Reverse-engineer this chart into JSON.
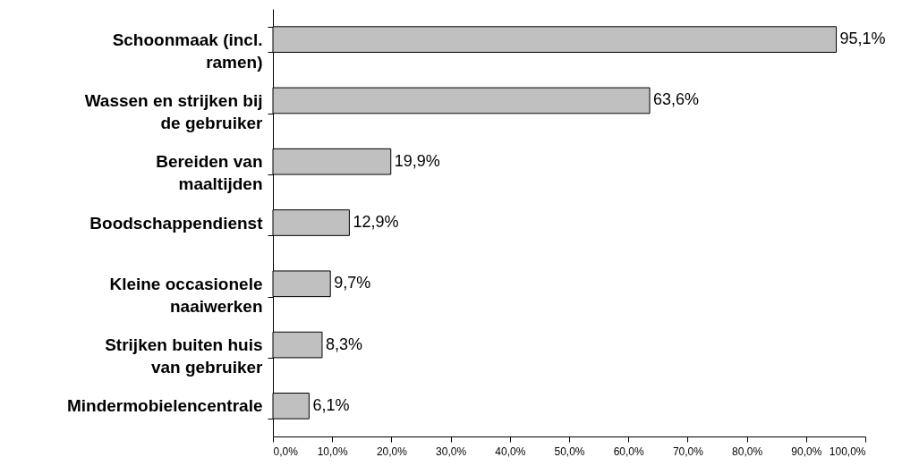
{
  "chart_data": {
    "type": "bar",
    "orientation": "horizontal",
    "categories": [
      "Schoonmaak (incl. ramen)",
      "Wassen en strijken bij de gebruiker",
      "Bereiden van maaltijden",
      "Boodschappendienst",
      "Kleine occasionele naaiwerken",
      "Strijken buiten huis van gebruiker",
      "Mindermobielencentrale"
    ],
    "values": [
      95.1,
      63.6,
      19.9,
      12.9,
      9.7,
      8.3,
      6.1
    ],
    "value_labels": [
      "95,1%",
      "63,6%",
      "19,9%",
      "12,9%",
      "9,7%",
      "8,3%",
      "6,1%"
    ],
    "color": "#c0c0c0",
    "xlim": [
      0,
      100
    ],
    "xticks": [
      {
        "value": 0,
        "label": "0,0%"
      },
      {
        "value": 10,
        "label": "10,0%"
      },
      {
        "value": 20,
        "label": "20,0%"
      },
      {
        "value": 30,
        "label": "30,0%"
      },
      {
        "value": 40,
        "label": "40,0%"
      },
      {
        "value": 50,
        "label": "50,0%"
      },
      {
        "value": 60,
        "label": "60,0%"
      },
      {
        "value": 70,
        "label": "70,0%"
      },
      {
        "value": 80,
        "label": "80,0%"
      },
      {
        "value": 90,
        "label": "90,0%"
      },
      {
        "value": 100,
        "label": "100,0%"
      }
    ],
    "grid": false
  }
}
